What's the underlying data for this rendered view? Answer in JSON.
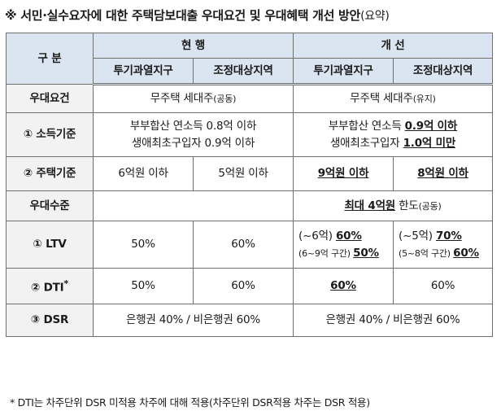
{
  "title": {
    "text": "※ 서민·실수요자에 대한 주택담보대출 우대요건 및 우대혜택 개선 방안",
    "suffix": "(요약)"
  },
  "header": {
    "category": "구 분",
    "current": "현 행",
    "improved": "개 선",
    "zone1": "투기과열지구",
    "zone2": "조정대상지역"
  },
  "rows": {
    "requirements": {
      "label": "우대요건",
      "current_main": "무주택 세대주",
      "current_note": "(공동)",
      "improved_main": "무주택 세대주",
      "improved_note": "(유지)"
    },
    "income": {
      "label": "① 소득기준",
      "current_line1": "부부합산 연소득 0.8억 이하",
      "current_line2": "생애최초구입자 0.9억 이하",
      "improved_line1_pre": "부부합산 연소득 ",
      "improved_line1_val": "0.9억 이하",
      "improved_line2_pre": "생애최초구입자 ",
      "improved_line2_val": "1.0억 미만"
    },
    "housing": {
      "label": "② 주택기준",
      "current_zone1": "6억원 이하",
      "current_zone2": "5억원 이하",
      "improved_zone1": "9억원 이하",
      "improved_zone2": "8억원 이하"
    },
    "level": {
      "label": "우대수준",
      "improved_pre": "최대 4억원",
      "improved_post": " 한도",
      "improved_note": "(공동)"
    },
    "ltv": {
      "label": "① LTV",
      "current_zone1": "50%",
      "current_zone2": "60%",
      "improved_zone1_l1_pre": "(~6억) ",
      "improved_zone1_l1_val": "60%",
      "improved_zone1_l2_pre": "(6~9억 구간) ",
      "improved_zone1_l2_val": "50%",
      "improved_zone2_l1_pre": "(~5억) ",
      "improved_zone2_l1_val": "70%",
      "improved_zone2_l2_pre": "(5~8억 구간) ",
      "improved_zone2_l2_val": "60%"
    },
    "dti": {
      "label": "② DTI",
      "mark": "*",
      "current_zone1": "50%",
      "current_zone2": "60%",
      "improved_zone1": "60%",
      "improved_zone2": "60%"
    },
    "dsr": {
      "label": "③ DSR",
      "current": "은행권 40% / 비은행권 60%",
      "improved": "은행권 40% / 비은행권 60%"
    }
  },
  "footnote": "* DTI는 차주단위 DSR 미적용 차주에 대해 적용(차주단위 DSR적용 차주는 DSR 적용)"
}
